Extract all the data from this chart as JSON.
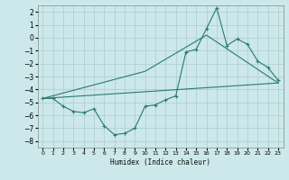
{
  "title": "",
  "xlabel": "Humidex (Indice chaleur)",
  "ylabel": "",
  "bg_color": "#cce8ea",
  "grid_color": "#aacccc",
  "line_color": "#2a7a6e",
  "xlim": [
    -0.5,
    23.5
  ],
  "ylim": [
    -8.5,
    2.5
  ],
  "xticks": [
    0,
    1,
    2,
    3,
    4,
    5,
    6,
    7,
    8,
    9,
    10,
    11,
    12,
    13,
    14,
    15,
    16,
    17,
    18,
    19,
    20,
    21,
    22,
    23
  ],
  "yticks": [
    -8,
    -7,
    -6,
    -5,
    -4,
    -3,
    -2,
    -1,
    0,
    1,
    2
  ],
  "series": [
    {
      "x": [
        0,
        1,
        2,
        3,
        4,
        5,
        6,
        7,
        8,
        9,
        10,
        11,
        12,
        13,
        14,
        15,
        16,
        17,
        18,
        19,
        20,
        21,
        22,
        23
      ],
      "y": [
        -4.7,
        -4.7,
        -5.3,
        -5.7,
        -5.8,
        -5.5,
        -6.8,
        -7.5,
        -7.4,
        -7.0,
        -5.3,
        -5.2,
        -4.8,
        -4.5,
        -1.1,
        -0.9,
        0.7,
        2.3,
        -0.6,
        -0.1,
        -0.5,
        -1.8,
        -2.3,
        -3.3
      ],
      "marker": "+"
    },
    {
      "x": [
        0,
        10,
        16,
        23
      ],
      "y": [
        -4.7,
        -2.6,
        0.2,
        -3.5
      ],
      "marker": null
    },
    {
      "x": [
        0,
        23
      ],
      "y": [
        -4.7,
        -3.5
      ],
      "marker": null
    }
  ]
}
